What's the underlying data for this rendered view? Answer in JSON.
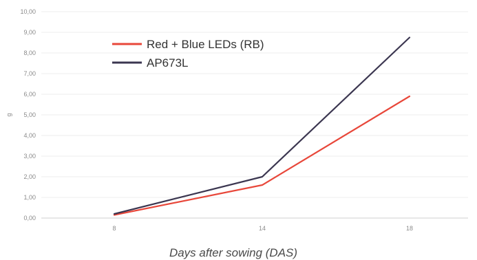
{
  "chart_data": {
    "type": "line",
    "xlabel": "Days after sowing (DAS)",
    "ylabel": "g",
    "categories": [
      "8",
      "14",
      "18"
    ],
    "y_ticks": [
      "0,00",
      "1,00",
      "2,00",
      "3,00",
      "4,00",
      "5,00",
      "6,00",
      "7,00",
      "8,00",
      "9,00",
      "10,00"
    ],
    "ylim": [
      0,
      10
    ],
    "grid": "horizontal",
    "legend_position": "top-left",
    "series": [
      {
        "name": "Red + Blue LEDs (RB)",
        "color": "#e8473a",
        "values": [
          0.15,
          1.6,
          5.9
        ]
      },
      {
        "name": "AP673L",
        "color": "#3b3650",
        "values": [
          0.2,
          2.0,
          8.75
        ]
      }
    ]
  }
}
